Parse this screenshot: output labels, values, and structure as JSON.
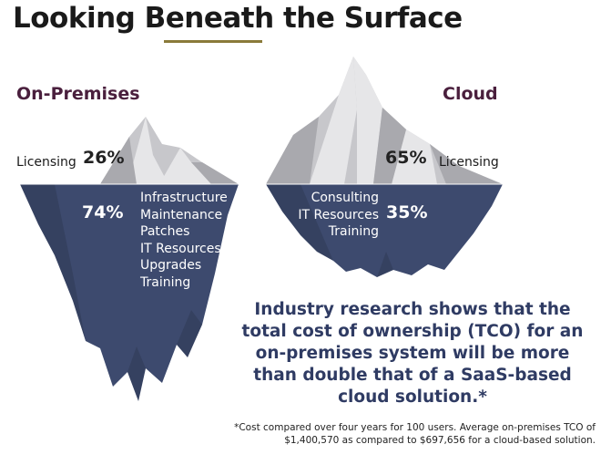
{
  "title": "Looking Beneath the Surface",
  "colors": {
    "accent_rule": "#8a7a3a",
    "heading": "#4a1f3d",
    "callout": "#2f3b63",
    "water": "#3d4a6e",
    "ice_light": "#e6e6e8",
    "ice_mid": "#c7c7cb",
    "ice_shadow": "#a9a9ae"
  },
  "on_premises": {
    "heading": "On-Premises",
    "above_label": "Licensing",
    "above_pct": "26%",
    "below_pct": "74%",
    "below_items": [
      "Infrastructure",
      "Maintenance",
      "Patches",
      "IT Resources",
      "Upgrades",
      "Training"
    ]
  },
  "cloud": {
    "heading": "Cloud",
    "above_label": "Licensing",
    "above_pct": "65%",
    "below_pct": "35%",
    "below_items": [
      "Consulting",
      "IT Resources",
      "Training"
    ]
  },
  "callout": "Industry research shows that the total cost of ownership (TCO) for an on-premises system will be more than double that of a SaaS-based cloud solution.*",
  "footnote": "*Cost compared over four years for 100 users. Average on-premises TCO of $1,400,570 as compared to $697,656 for a cloud-based solution."
}
